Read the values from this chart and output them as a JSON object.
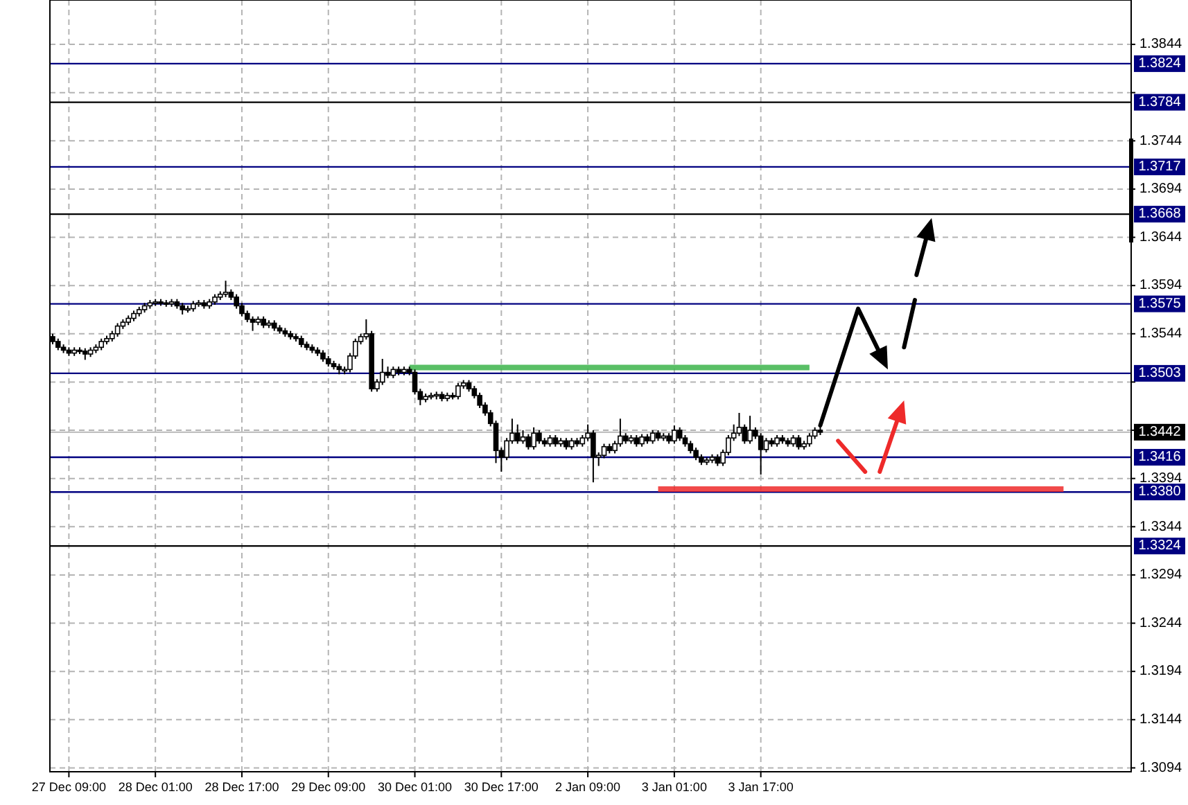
{
  "chart_data": {
    "type": "candlestick",
    "categories": [
      null,
      null,
      null,
      "27 Dec 09:00",
      null,
      null,
      null,
      null,
      null,
      null,
      null,
      null,
      null,
      null,
      null,
      null,
      null,
      null,
      null,
      "28 Dec 01:00",
      null,
      null,
      null,
      null,
      null,
      null,
      null,
      null,
      null,
      null,
      null,
      null,
      null,
      null,
      null,
      "28 Dec 17:00",
      null,
      null,
      null,
      null,
      null,
      null,
      null,
      null,
      null,
      null,
      null,
      null,
      null,
      null,
      null,
      "29 Dec 09:00",
      null,
      null,
      null,
      null,
      null,
      null,
      null,
      null,
      null,
      null,
      null,
      null,
      null,
      null,
      null,
      "30 Dec 01:00",
      null,
      null,
      null,
      null,
      null,
      null,
      null,
      null,
      null,
      null,
      null,
      null,
      null,
      null,
      null,
      "30 Dec 17:00",
      null,
      null,
      null,
      null,
      null,
      null,
      null,
      null,
      null,
      null,
      null,
      null,
      null,
      null,
      null,
      "2 Jan 09:00",
      null,
      null,
      null,
      null,
      null,
      null,
      null,
      null,
      null,
      null,
      null,
      null,
      null,
      null,
      null,
      "3 Jan 01:00",
      null,
      null,
      null,
      null,
      null,
      null,
      null,
      null,
      null,
      null,
      null,
      null,
      null,
      null,
      null,
      "3 Jan 17:00",
      null,
      null,
      null,
      null,
      null,
      null,
      null,
      null,
      null,
      null,
      null,
      null,
      null,
      null,
      null,
      null,
      null,
      null,
      null,
      null,
      null,
      null,
      null,
      null,
      null,
      null,
      null,
      null,
      null,
      null,
      null,
      null,
      null,
      null,
      null,
      null,
      null,
      null,
      null,
      null,
      null,
      null,
      null,
      null,
      null,
      null,
      null,
      null,
      null,
      null,
      null,
      null,
      null,
      null,
      null,
      null,
      null,
      null,
      null,
      null,
      null,
      null,
      null,
      null,
      null,
      null,
      null,
      null
    ],
    "ohlc": [
      [
        1.3541,
        1.3544,
        1.3533,
        1.3536
      ],
      [
        1.3536,
        1.3539,
        1.3527,
        1.353
      ],
      [
        1.353,
        1.3533,
        1.3524,
        1.3527
      ],
      [
        1.3527,
        1.353,
        1.3521,
        1.3524
      ],
      [
        1.3524,
        1.353,
        1.3521,
        1.3527
      ],
      [
        1.3527,
        1.353,
        1.3523,
        1.3526
      ],
      [
        1.3526,
        1.3529,
        1.3517,
        1.3523
      ],
      [
        1.3523,
        1.353,
        1.352,
        1.3527
      ],
      [
        1.3527,
        1.3533,
        1.3524,
        1.353
      ],
      [
        1.353,
        1.3539,
        1.3527,
        1.3536
      ],
      [
        1.3536,
        1.3542,
        1.3533,
        1.3539
      ],
      [
        1.3539,
        1.3547,
        1.3536,
        1.3544
      ],
      [
        1.3544,
        1.3555,
        1.3541,
        1.3552
      ],
      [
        1.3552,
        1.3559,
        1.3549,
        1.3556
      ],
      [
        1.3556,
        1.3563,
        1.3553,
        1.356
      ],
      [
        1.356,
        1.3568,
        1.3557,
        1.3565
      ],
      [
        1.3565,
        1.3572,
        1.3562,
        1.3569
      ],
      [
        1.3569,
        1.3576,
        1.3566,
        1.3573
      ],
      [
        1.3573,
        1.3579,
        1.357,
        1.3576
      ],
      [
        1.3576,
        1.358,
        1.3573,
        1.3577
      ],
      [
        1.3577,
        1.358,
        1.3573,
        1.3576
      ],
      [
        1.3576,
        1.3579,
        1.3572,
        1.3575
      ],
      [
        1.3575,
        1.358,
        1.3572,
        1.3577
      ],
      [
        1.3577,
        1.358,
        1.357,
        1.3573
      ],
      [
        1.3573,
        1.3576,
        1.3564,
        1.3569
      ],
      [
        1.3569,
        1.3573,
        1.3566,
        1.357
      ],
      [
        1.357,
        1.3578,
        1.3567,
        1.3575
      ],
      [
        1.3575,
        1.3579,
        1.3572,
        1.3576
      ],
      [
        1.3576,
        1.3579,
        1.357,
        1.3573
      ],
      [
        1.3573,
        1.358,
        1.357,
        1.3577
      ],
      [
        1.3577,
        1.3585,
        1.3574,
        1.3582
      ],
      [
        1.3582,
        1.3588,
        1.3579,
        1.3585
      ],
      [
        1.3585,
        1.3599,
        1.3582,
        1.3587
      ],
      [
        1.3587,
        1.359,
        1.3579,
        1.3582
      ],
      [
        1.3582,
        1.3585,
        1.357,
        1.3573
      ],
      [
        1.3573,
        1.3576,
        1.3562,
        1.3565
      ],
      [
        1.3565,
        1.3568,
        1.3556,
        1.3559
      ],
      [
        1.3559,
        1.3562,
        1.3547,
        1.3556
      ],
      [
        1.3556,
        1.3562,
        1.3553,
        1.3559
      ],
      [
        1.3559,
        1.3562,
        1.355,
        1.3553
      ],
      [
        1.3553,
        1.3558,
        1.355,
        1.3555
      ],
      [
        1.3555,
        1.3558,
        1.3547,
        1.355
      ],
      [
        1.355,
        1.3553,
        1.3544,
        1.3547
      ],
      [
        1.3547,
        1.355,
        1.3541,
        1.3544
      ],
      [
        1.3544,
        1.3547,
        1.3538,
        1.3541
      ],
      [
        1.3541,
        1.3544,
        1.3536,
        1.3539
      ],
      [
        1.3539,
        1.3542,
        1.353,
        1.3533
      ],
      [
        1.3533,
        1.3536,
        1.3527,
        1.353
      ],
      [
        1.353,
        1.3533,
        1.3524,
        1.3527
      ],
      [
        1.3527,
        1.353,
        1.3521,
        1.3524
      ],
      [
        1.3524,
        1.3527,
        1.3515,
        1.3518
      ],
      [
        1.3518,
        1.3521,
        1.351,
        1.3513
      ],
      [
        1.3513,
        1.3516,
        1.3507,
        1.351
      ],
      [
        1.351,
        1.3513,
        1.3502,
        1.3507
      ],
      [
        1.3507,
        1.351,
        1.3502,
        1.3507
      ],
      [
        1.3507,
        1.3524,
        1.3504,
        1.3521
      ],
      [
        1.3521,
        1.3539,
        1.3518,
        1.3536
      ],
      [
        1.3536,
        1.3544,
        1.3533,
        1.3541
      ],
      [
        1.3541,
        1.3559,
        1.3538,
        1.3544
      ],
      [
        1.3544,
        1.3547,
        1.3484,
        1.3487
      ],
      [
        1.3487,
        1.3497,
        1.3484,
        1.3494
      ],
      [
        1.3494,
        1.3518,
        1.3491,
        1.3504
      ],
      [
        1.3504,
        1.351,
        1.3498,
        1.3501
      ],
      [
        1.3501,
        1.351,
        1.3498,
        1.3507
      ],
      [
        1.3507,
        1.351,
        1.3501,
        1.3504
      ],
      [
        1.3504,
        1.351,
        1.3501,
        1.3507
      ],
      [
        1.3507,
        1.351,
        1.3501,
        1.3504
      ],
      [
        1.3504,
        1.3507,
        1.3481,
        1.3484
      ],
      [
        1.3484,
        1.3487,
        1.347,
        1.3476
      ],
      [
        1.3476,
        1.3482,
        1.3473,
        1.3479
      ],
      [
        1.3479,
        1.3483,
        1.3476,
        1.348
      ],
      [
        1.348,
        1.3484,
        1.3476,
        1.3481
      ],
      [
        1.3481,
        1.3484,
        1.3474,
        1.3477
      ],
      [
        1.3477,
        1.3483,
        1.3474,
        1.348
      ],
      [
        1.348,
        1.3483,
        1.3476,
        1.3479
      ],
      [
        1.3479,
        1.3493,
        1.3476,
        1.349
      ],
      [
        1.349,
        1.3496,
        1.3487,
        1.3493
      ],
      [
        1.3493,
        1.3496,
        1.3484,
        1.3487
      ],
      [
        1.3487,
        1.349,
        1.3477,
        1.348
      ],
      [
        1.348,
        1.3483,
        1.3467,
        1.347
      ],
      [
        1.347,
        1.3473,
        1.3459,
        1.3462
      ],
      [
        1.3462,
        1.3465,
        1.3448,
        1.3451
      ],
      [
        1.3451,
        1.3454,
        1.341,
        1.3423
      ],
      [
        1.3423,
        1.3426,
        1.3401,
        1.3416
      ],
      [
        1.3416,
        1.3436,
        1.3413,
        1.3433
      ],
      [
        1.3433,
        1.3456,
        1.343,
        1.3441
      ],
      [
        1.3441,
        1.345,
        1.343,
        1.3433
      ],
      [
        1.3433,
        1.3444,
        1.343,
        1.3437
      ],
      [
        1.3437,
        1.344,
        1.3424,
        1.3427
      ],
      [
        1.3427,
        1.3447,
        1.3424,
        1.3441
      ],
      [
        1.3441,
        1.3444,
        1.343,
        1.3433
      ],
      [
        1.3433,
        1.3436,
        1.3427,
        1.343
      ],
      [
        1.343,
        1.3439,
        1.3427,
        1.3436
      ],
      [
        1.3436,
        1.3439,
        1.3427,
        1.343
      ],
      [
        1.343,
        1.3436,
        1.3427,
        1.3433
      ],
      [
        1.3433,
        1.3436,
        1.3424,
        1.3427
      ],
      [
        1.3427,
        1.3436,
        1.3424,
        1.3433
      ],
      [
        1.3433,
        1.3436,
        1.3427,
        1.343
      ],
      [
        1.343,
        1.3439,
        1.3427,
        1.3436
      ],
      [
        1.3436,
        1.345,
        1.3433,
        1.3441
      ],
      [
        1.3441,
        1.3444,
        1.339,
        1.3416
      ],
      [
        1.3416,
        1.3421,
        1.3407,
        1.3418
      ],
      [
        1.3418,
        1.343,
        1.3415,
        1.3427
      ],
      [
        1.3427,
        1.343,
        1.342,
        1.3423
      ],
      [
        1.3423,
        1.3433,
        1.342,
        1.343
      ],
      [
        1.343,
        1.3456,
        1.3427,
        1.3438
      ],
      [
        1.3438,
        1.3441,
        1.343,
        1.3433
      ],
      [
        1.3433,
        1.3439,
        1.343,
        1.3436
      ],
      [
        1.3436,
        1.3439,
        1.3427,
        1.343
      ],
      [
        1.343,
        1.344,
        1.3427,
        1.3437
      ],
      [
        1.3437,
        1.344,
        1.343,
        1.3433
      ],
      [
        1.3433,
        1.3444,
        1.343,
        1.3441
      ],
      [
        1.3441,
        1.3444,
        1.3433,
        1.3436
      ],
      [
        1.3436,
        1.3441,
        1.3433,
        1.3438
      ],
      [
        1.3438,
        1.3441,
        1.343,
        1.3433
      ],
      [
        1.3433,
        1.3449,
        1.343,
        1.3444
      ],
      [
        1.3444,
        1.3447,
        1.3433,
        1.3436
      ],
      [
        1.3436,
        1.3439,
        1.3427,
        1.343
      ],
      [
        1.343,
        1.3433,
        1.342,
        1.3423
      ],
      [
        1.3423,
        1.3426,
        1.3413,
        1.3416
      ],
      [
        1.3416,
        1.3419,
        1.3408,
        1.3411
      ],
      [
        1.3411,
        1.3416,
        1.3408,
        1.3413
      ],
      [
        1.3413,
        1.3419,
        1.341,
        1.3416
      ],
      [
        1.3416,
        1.3419,
        1.3407,
        1.341
      ],
      [
        1.341,
        1.3424,
        1.3407,
        1.3421
      ],
      [
        1.3421,
        1.3439,
        1.3418,
        1.3436
      ],
      [
        1.3436,
        1.345,
        1.3433,
        1.3441
      ],
      [
        1.3441,
        1.3462,
        1.3438,
        1.3447
      ],
      [
        1.3447,
        1.345,
        1.343,
        1.3433
      ],
      [
        1.3433,
        1.3459,
        1.343,
        1.3444
      ],
      [
        1.3444,
        1.3447,
        1.3435,
        1.3438
      ],
      [
        1.3438,
        1.3441,
        1.3398,
        1.3424
      ],
      [
        1.3424,
        1.3436,
        1.3421,
        1.3433
      ],
      [
        1.3433,
        1.3436,
        1.3427,
        1.343
      ],
      [
        1.343,
        1.3439,
        1.3427,
        1.3436
      ],
      [
        1.3436,
        1.3439,
        1.343,
        1.3433
      ],
      [
        1.3433,
        1.3436,
        1.3427,
        1.343
      ],
      [
        1.343,
        1.3439,
        1.3427,
        1.3436
      ],
      [
        1.3436,
        1.3439,
        1.3424,
        1.3427
      ],
      [
        1.3427,
        1.3433,
        1.3424,
        1.343
      ],
      [
        1.343,
        1.3441,
        1.3427,
        1.3438
      ],
      [
        1.3438,
        1.3447,
        1.3435,
        1.3444
      ],
      [
        1.3444,
        1.3447,
        1.3439,
        1.3442
      ],
      null,
      null,
      null,
      null,
      null,
      null,
      null,
      null,
      null,
      null,
      null,
      null,
      null,
      null,
      null,
      null,
      null,
      null,
      null,
      null,
      null,
      null,
      null,
      null,
      null,
      null,
      null,
      null,
      null,
      null,
      null,
      null,
      null,
      null,
      null,
      null,
      null,
      null,
      null,
      null,
      null,
      null,
      null,
      null,
      null,
      null,
      null,
      null,
      null,
      null,
      null,
      null,
      null,
      null,
      null,
      null,
      null
    ],
    "series": [
      {
        "type": "line",
        "color": "#3cb44b",
        "values": [
          null,
          null,
          null,
          null,
          null,
          null,
          null,
          null,
          null,
          null,
          null,
          null,
          null,
          null,
          null,
          null,
          null,
          null,
          null,
          null,
          null,
          null,
          null,
          null,
          null,
          null,
          null,
          null,
          null,
          null,
          null,
          null,
          null,
          null,
          null,
          null,
          null,
          null,
          null,
          null,
          null,
          null,
          null,
          null,
          null,
          null,
          null,
          null,
          null,
          null,
          null,
          null,
          null,
          null,
          null,
          null,
          null,
          null,
          null,
          null,
          null,
          null,
          null,
          null,
          null,
          null,
          1.3509,
          null,
          null,
          null,
          null,
          null,
          null,
          null,
          null,
          null,
          null,
          null,
          null,
          null,
          null,
          null,
          null,
          null,
          null,
          null,
          null,
          null,
          null,
          null,
          null,
          null,
          null,
          null,
          null,
          null,
          null,
          null,
          null,
          null,
          null,
          null,
          null,
          null,
          null,
          null,
          null,
          null,
          null,
          null,
          null,
          null,
          null,
          null,
          null,
          null,
          null,
          null,
          null,
          null,
          null,
          null,
          null,
          null,
          null,
          null,
          null,
          null,
          null,
          null,
          null,
          null,
          null,
          null,
          null,
          null,
          null,
          null,
          null,
          null,
          1.3509,
          null,
          null,
          null,
          null,
          null,
          null,
          null,
          null,
          null,
          null,
          null,
          null,
          null,
          null,
          null,
          null,
          null,
          null,
          null,
          null,
          null,
          null,
          null,
          null,
          null,
          null,
          null,
          null,
          null,
          null,
          null,
          null,
          null,
          null,
          null,
          null,
          null,
          null,
          null,
          null,
          null,
          null,
          null,
          null,
          null,
          null,
          null,
          null,
          null,
          null,
          null,
          null,
          null,
          null,
          null,
          null,
          null,
          null,
          null
        ]
      },
      {
        "type": "line",
        "color": "#ee2a2a",
        "values": [
          null,
          null,
          null,
          null,
          null,
          null,
          null,
          null,
          null,
          null,
          null,
          null,
          null,
          null,
          null,
          null,
          null,
          null,
          null,
          null,
          null,
          null,
          null,
          null,
          null,
          null,
          null,
          null,
          null,
          null,
          null,
          null,
          null,
          null,
          null,
          null,
          null,
          null,
          null,
          null,
          null,
          null,
          null,
          null,
          null,
          null,
          null,
          null,
          null,
          null,
          null,
          null,
          null,
          null,
          null,
          null,
          null,
          null,
          null,
          null,
          null,
          null,
          null,
          null,
          null,
          null,
          null,
          null,
          null,
          null,
          null,
          null,
          null,
          null,
          null,
          null,
          null,
          null,
          null,
          null,
          null,
          null,
          null,
          null,
          null,
          null,
          null,
          null,
          null,
          null,
          null,
          null,
          null,
          null,
          null,
          null,
          null,
          null,
          null,
          null,
          null,
          null,
          null,
          null,
          null,
          null,
          null,
          null,
          null,
          null,
          null,
          null,
          1.3383,
          null,
          null,
          null,
          null,
          null,
          null,
          null,
          null,
          null,
          null,
          null,
          null,
          null,
          null,
          null,
          null,
          null,
          null,
          null,
          null,
          null,
          null,
          null,
          null,
          null,
          null,
          null,
          null,
          null,
          null,
          null,
          null,
          null,
          null,
          null,
          null,
          null,
          null,
          null,
          null,
          null,
          null,
          null,
          null,
          null,
          null,
          null,
          null,
          null,
          null,
          null,
          null,
          null,
          null,
          null,
          null,
          null,
          null,
          null,
          null,
          null,
          null,
          null,
          null,
          null,
          null,
          null,
          null,
          null,
          null,
          null,
          null,
          null,
          null,
          1.3383,
          null,
          null,
          null,
          null,
          null,
          null,
          null,
          null,
          null,
          null,
          null,
          null
        ]
      }
    ],
    "ylim": [
      1.309,
      1.389
    ],
    "yticks": [
      1.3844,
      {
        "value": 1.3794,
        "label": null
      },
      1.3744,
      1.3694,
      1.3644,
      1.3594,
      1.3544,
      {
        "value": 1.3494,
        "label": null
      },
      {
        "value": 1.3444,
        "label": null
      },
      1.3394,
      1.3344,
      1.3294,
      1.3244,
      1.3194,
      1.3144,
      1.3094
    ],
    "ref_lines": [
      {
        "axis": "y",
        "value": 1.3824,
        "label": "1.3824",
        "color": "#000080"
      },
      {
        "axis": "y",
        "value": 1.3784,
        "label": "1.3784",
        "color": "#000000"
      },
      {
        "axis": "y",
        "value": 1.3717,
        "label": "1.3717",
        "color": "#000080"
      },
      {
        "axis": "y",
        "value": 1.3668,
        "label": "1.3668",
        "color": "#000000"
      },
      {
        "axis": "y",
        "value": 1.3575,
        "label": "1.3575",
        "color": "#000080"
      },
      {
        "axis": "y",
        "value": 1.3503,
        "label": "1.3503",
        "color": "#000080"
      },
      {
        "axis": "y",
        "value": 1.3442,
        "label": "1.3442",
        "color": "#c0c0c0"
      },
      {
        "axis": "y",
        "value": 1.3416,
        "label": "1.3416",
        "color": "#000080"
      },
      {
        "axis": "y",
        "value": 1.338,
        "label": "1.3380",
        "color": "#000080"
      },
      {
        "axis": "y",
        "value": 1.3324,
        "label": "1.3324",
        "color": "#000000"
      }
    ],
    "grid": true
  }
}
